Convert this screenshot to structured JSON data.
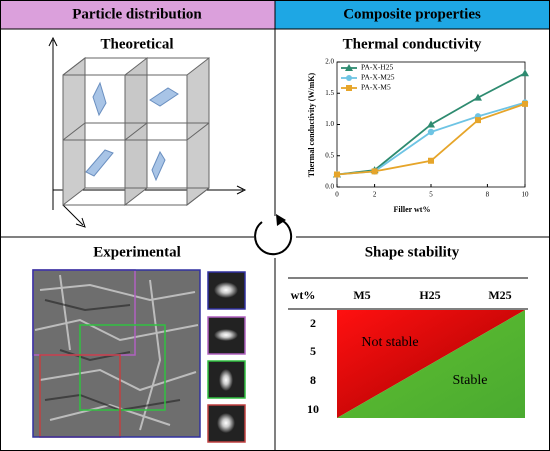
{
  "headers": {
    "left": "Particle distribution",
    "right": "Composite properties"
  },
  "panels": {
    "theoretical": "Theoretical",
    "experimental": "Experimental"
  },
  "chart_data": {
    "type": "line",
    "title": "Thermal conductivity",
    "x_label": "Filler wt%",
    "y_label": "Thermal conductivity (W/mK)",
    "x": [
      0,
      2,
      5,
      7.5,
      10
    ],
    "series": [
      {
        "name": "PA-X-H25",
        "color": "#2e8b70",
        "marker": "triangle",
        "values": [
          0.2,
          0.27,
          1.0,
          1.43,
          1.82
        ]
      },
      {
        "name": "PA-X-M25",
        "color": "#6ec4e4",
        "marker": "circle",
        "values": [
          0.2,
          0.25,
          0.88,
          1.13,
          1.35
        ]
      },
      {
        "name": "PA-X-M5",
        "color": "#e6a52a",
        "marker": "square",
        "values": [
          0.2,
          0.25,
          0.42,
          1.07,
          1.33
        ]
      }
    ],
    "xlim": [
      0,
      10
    ],
    "xticks": [
      0,
      2,
      5,
      8,
      10
    ],
    "ylim": [
      0,
      2
    ],
    "yticks": [
      {
        "value": 0,
        "label": "0.0"
      },
      {
        "value": 0.5,
        "label": "0.5"
      },
      {
        "value": 1,
        "label": "1.0"
      },
      {
        "value": 1.5,
        "label": "1.5"
      },
      {
        "value": 2,
        "label": "2.0"
      }
    ],
    "legend": "upper-left"
  },
  "shape_stability": {
    "title": "Shape stability",
    "columns": [
      "wt%",
      "M5",
      "H25",
      "M25"
    ],
    "rows": [
      "2",
      "5",
      "8",
      "10"
    ],
    "regions": [
      "Not stable",
      "Stable"
    ]
  }
}
